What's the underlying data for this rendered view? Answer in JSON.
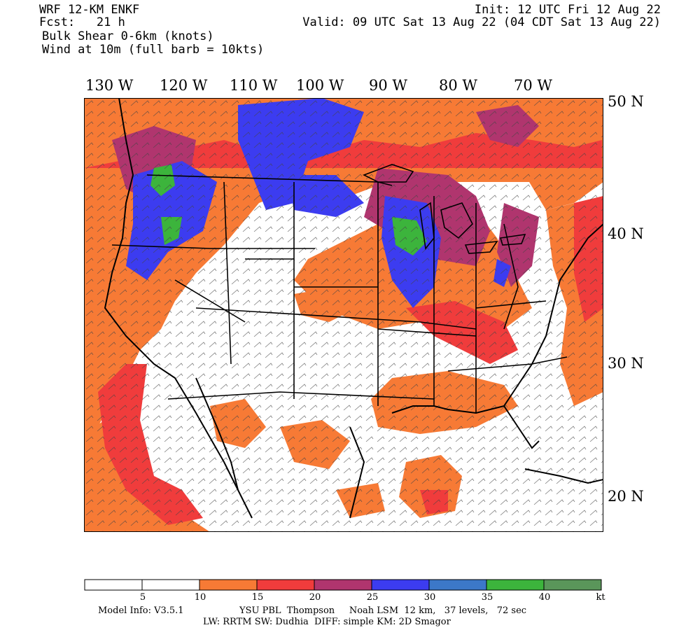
{
  "header": {
    "model": "WRF 12-KM ENKF",
    "fcst": "Fcst:   21 h",
    "field1": "Bulk Shear 0-6km (knots)",
    "field2": "Wind at 10m (full barb = 10kts)",
    "init": "Init: 12 UTC Fri 12 Aug 22",
    "valid": "Valid: 09 UTC Sat 13 Aug 22 (04 CDT Sat 13 Aug 22)"
  },
  "longitudes": [
    "130 W",
    "120 W",
    "110 W",
    "100 W",
    "90 W",
    "80 W",
    "70 W"
  ],
  "latitudes": [
    "50 N",
    "40 N",
    "30 N",
    "20 N"
  ],
  "colorbar": {
    "colors": [
      "#ffffff",
      "#ffffff",
      "#f77a35",
      "#f03c3c",
      "#b0356e",
      "#3c3cf0",
      "#3c78c8",
      "#3cb43c",
      "#5a965a"
    ],
    "ticks": [
      "5",
      "10",
      "15",
      "20",
      "25",
      "30",
      "35",
      "40"
    ],
    "unit": "kt"
  },
  "footer": {
    "line1_left": "Model Info: V3.5.1",
    "line1_right": "YSU PBL  Thompson     Noah LSM  12 km,   37 levels,   72 sec",
    "line2": "LW: RRTM SW: Dudhia  DIFF: simple KM: 2D Smagor"
  }
}
